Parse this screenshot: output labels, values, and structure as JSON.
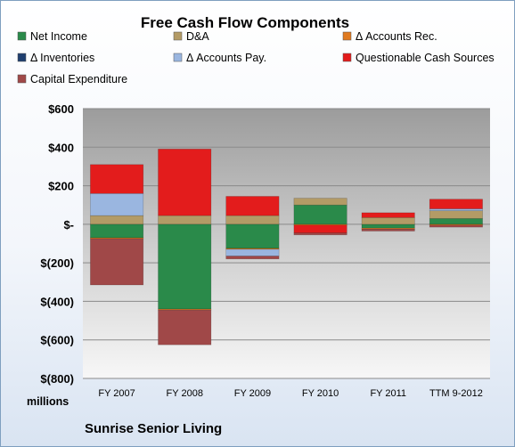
{
  "chart_data": {
    "type": "bar",
    "stacked": true,
    "title": "Free Cash Flow Components",
    "categories": [
      "FY 2007",
      "FY 2008",
      "FY 2009",
      "FY 2010",
      "FY 2011",
      "TTM 9-2012"
    ],
    "y_ticks": [
      "$600",
      "$400",
      "$200",
      "$-",
      "$(200)",
      "$(400)",
      "$(600)",
      "$(800)"
    ],
    "ylim": [
      -800,
      600
    ],
    "units_label": "millions",
    "footer": "Sunrise Senior Living",
    "grid": true,
    "legend_position": "top",
    "series": [
      {
        "name": "Net Income",
        "color": "#2a8a4a",
        "values": [
          -70,
          -440,
          -125,
          100,
          -20,
          30
        ]
      },
      {
        "name": "D&A",
        "color": "#b39b66",
        "values": [
          45,
          45,
          45,
          35,
          35,
          40
        ]
      },
      {
        "name": "Δ Accounts Rec.",
        "color": "#e07a20",
        "values": [
          -5,
          -5,
          -5,
          -5,
          -5,
          -5
        ]
      },
      {
        "name": "Δ Inventories",
        "color": "#1f3f6f",
        "values": [
          0,
          0,
          0,
          0,
          0,
          0
        ]
      },
      {
        "name": "Δ Accounts Pay.",
        "color": "#9ab6e0",
        "values": [
          115,
          0,
          -35,
          0,
          0,
          10
        ]
      },
      {
        "name": "Questionable Cash Sources",
        "color": "#e31c1c",
        "values": [
          150,
          345,
          100,
          -40,
          25,
          50
        ]
      },
      {
        "name": "Capital Expenditure",
        "color": "#a04848",
        "values": [
          -240,
          -180,
          -15,
          -10,
          -10,
          -10
        ]
      }
    ]
  }
}
